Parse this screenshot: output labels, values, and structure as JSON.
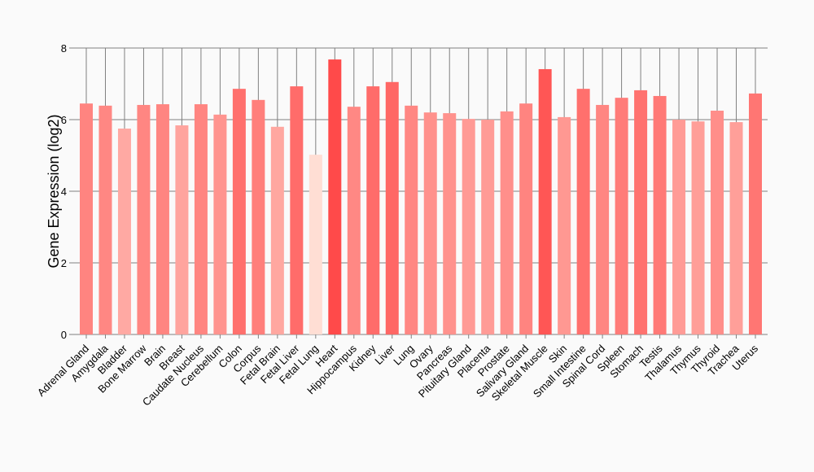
{
  "chart_data": {
    "type": "bar",
    "title": "",
    "xlabel": "",
    "ylabel": "Gene Expression (log2)",
    "ylim": [
      0,
      8
    ],
    "yticks": [
      0,
      2,
      4,
      6,
      8
    ],
    "grid": true,
    "categories": [
      "Adrenal Gland",
      "Amygdala",
      "Bladder",
      "Bone Marrow",
      "Brain",
      "Breast",
      "Caudate Nucleus",
      "Cerebellum",
      "Colon",
      "Corpus",
      "Fetal Brain",
      "Fetal Liver",
      "Fetal Lung",
      "Heart",
      "Hippocampus",
      "Kidney",
      "Liver",
      "Lung",
      "Ovary",
      "Pancreas",
      "Pituitary Gland",
      "Placenta",
      "Prostate",
      "Salivary Gland",
      "Skeletal Muscle",
      "Skin",
      "Small Intestine",
      "Spinal Cord",
      "Spleen",
      "Stomach",
      "Testis",
      "Thalamus",
      "Thymus",
      "Thyroid",
      "Trachea",
      "Uterus"
    ],
    "values": [
      6.45,
      6.39,
      5.75,
      6.41,
      6.43,
      5.84,
      6.43,
      6.14,
      6.86,
      6.55,
      5.8,
      6.93,
      5.02,
      7.68,
      6.36,
      6.93,
      7.05,
      6.39,
      6.2,
      6.18,
      6.02,
      6.0,
      6.23,
      6.45,
      7.41,
      6.07,
      6.86,
      6.41,
      6.61,
      6.82,
      6.66,
      6.0,
      5.95,
      6.25,
      5.93,
      6.73
    ]
  }
}
